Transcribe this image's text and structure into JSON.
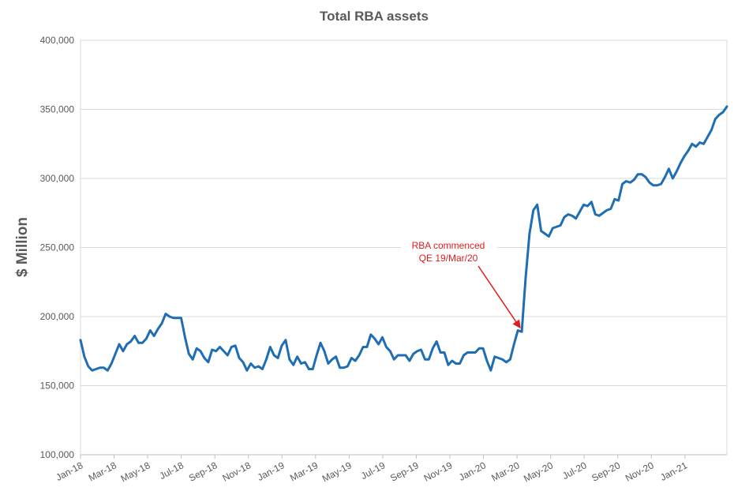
{
  "chart_data": {
    "type": "line",
    "title": "Total RBA assets",
    "xlabel": "",
    "ylabel": "$ Million",
    "ylim": [
      100000,
      400000
    ],
    "yticks": [
      100000,
      150000,
      200000,
      250000,
      300000,
      350000,
      400000
    ],
    "ytick_labels": [
      "100,000",
      "150,000",
      "200,000",
      "250,000",
      "300,000",
      "350,000",
      "400,000"
    ],
    "xtick_labels": [
      "Jan-18",
      "Mar-18",
      "May-18",
      "Jul-18",
      "Sep-18",
      "Nov-18",
      "Jan-19",
      "Mar-19",
      "May-19",
      "Jul-19",
      "Sep-19",
      "Nov-19",
      "Jan-20",
      "Mar-20",
      "May-20",
      "Jul-20",
      "Sep-20",
      "Nov-20",
      "Jan-21"
    ],
    "grid": "horizontal",
    "legend": "none",
    "series": [
      {
        "color": "#1f6db3",
        "values": [
          183000,
          171000,
          164000,
          161000,
          162000,
          163000,
          163000,
          161000,
          166000,
          173000,
          180000,
          175000,
          180000,
          182000,
          186000,
          181000,
          181000,
          184000,
          190000,
          186000,
          191000,
          195000,
          202000,
          200000,
          199000,
          199000,
          199000,
          185000,
          173000,
          169000,
          177000,
          175000,
          170000,
          167000,
          176000,
          175000,
          178000,
          175000,
          172000,
          178000,
          179000,
          170000,
          167000,
          161000,
          166000,
          163000,
          164000,
          162000,
          169000,
          178000,
          172000,
          170000,
          179000,
          183000,
          169000,
          165000,
          171000,
          166000,
          167000,
          162000,
          162000,
          172000,
          181000,
          175000,
          166000,
          169000,
          171000,
          163000,
          163000,
          164000,
          170000,
          168000,
          172000,
          178000,
          178000,
          187000,
          184000,
          180000,
          185000,
          178000,
          175000,
          169000,
          172000,
          172000,
          172000,
          168000,
          173000,
          175000,
          176000,
          169000,
          169000,
          177000,
          182000,
          174000,
          174000,
          165000,
          168000,
          166000,
          166000,
          172000,
          174000,
          174000,
          174000,
          177000,
          177000,
          168000,
          161000,
          171000,
          170000,
          169000,
          167000,
          169000,
          180000,
          190000,
          189000,
          228000,
          260000,
          277000,
          281000,
          262000,
          260000,
          258000,
          264000,
          265000,
          266000,
          272000,
          274000,
          273000,
          271000,
          276000,
          281000,
          280000,
          283000,
          274000,
          273000,
          275000,
          277000,
          278000,
          285000,
          284000,
          296000,
          298000,
          297000,
          299000,
          303000,
          303000,
          301000,
          297000,
          295000,
          295000,
          296000,
          301000,
          307000,
          300000,
          305000,
          311000,
          316000,
          320000,
          325000,
          323000,
          326000,
          325000,
          330000,
          335000,
          343000,
          346000,
          348000,
          352000
        ]
      }
    ],
    "annotations": [
      {
        "text_lines": [
          "RBA commenced",
          "QE 19/Mar/20"
        ],
        "arrow_to_index": 114
      }
    ]
  }
}
